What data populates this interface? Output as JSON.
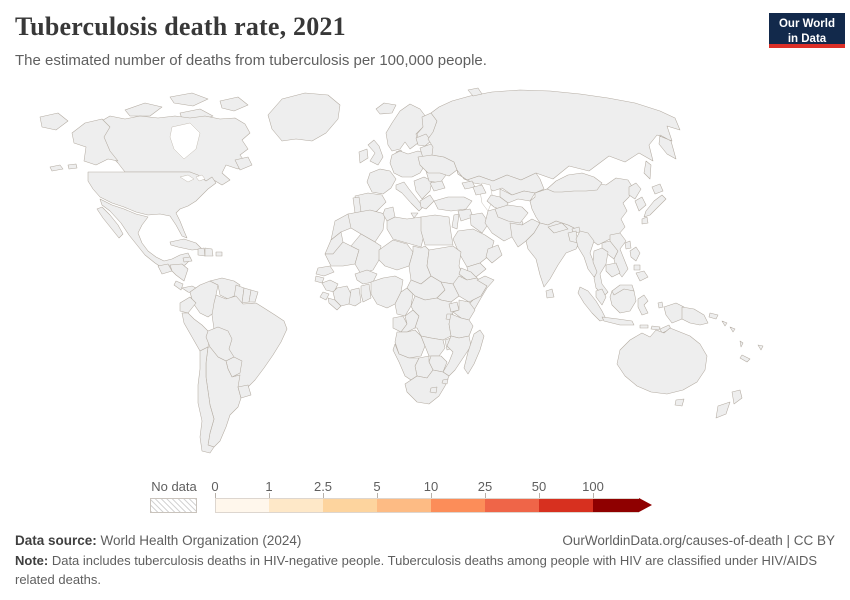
{
  "header": {
    "title": "Tuberculosis death rate, 2021",
    "subtitle": "The estimated number of deaths from tuberculosis per 100,000 people.",
    "logo_line1": "Our World",
    "logo_line2": "in Data"
  },
  "legend": {
    "no_data_label": "No data",
    "tick_labels": [
      "0",
      "1",
      "2.5",
      "5",
      "10",
      "25",
      "50",
      "100"
    ],
    "bins": [
      {
        "range": "0-1",
        "color": "#fff7ec"
      },
      {
        "range": "1-2.5",
        "color": "#fee8c8"
      },
      {
        "range": "2.5-5",
        "color": "#fdd49e"
      },
      {
        "range": "5-10",
        "color": "#fdbb84"
      },
      {
        "range": "10-25",
        "color": "#fc8d59"
      },
      {
        "range": "25-50",
        "color": "#ef6548"
      },
      {
        "range": "50-100",
        "color": "#d7301f"
      },
      {
        "range": "100+",
        "color": "#8f0000"
      }
    ],
    "segment_width": 54,
    "last_segment_width": 46
  },
  "map": {
    "border_color": "#b3aba1",
    "ocean_color": "#ffffff",
    "no_data_pattern": "diagonal-hatch"
  },
  "footer": {
    "source_label": "Data source:",
    "source_text": " World Health Organization (2024)",
    "link_text": "OurWorldinData.org/causes-of-death",
    "license_text": " | CC BY",
    "note_label": "Note:",
    "note_text": " Data includes tuberculosis deaths in HIV-negative people. Tuberculosis deaths among people with HIV are classified under HIV/AIDS related deaths."
  },
  "chart_data": {
    "type": "choropleth",
    "title": "Tuberculosis death rate, 2021",
    "unit": "estimated deaths from tuberculosis per 100,000 people",
    "year": 2021,
    "source": "World Health Organization (2024)",
    "legend_bins": [
      {
        "range": "0-1",
        "color": "#fff7ec"
      },
      {
        "range": "1-2.5",
        "color": "#fee8c8"
      },
      {
        "range": "2.5-5",
        "color": "#fdd49e"
      },
      {
        "range": "5-10",
        "color": "#fdbb84"
      },
      {
        "range": "10-25",
        "color": "#fc8d59"
      },
      {
        "range": "25-50",
        "color": "#ef6548"
      },
      {
        "range": "50-100",
        "color": "#d7301f"
      },
      {
        "range": "100+",
        "color": "#8f0000"
      }
    ],
    "groups": [
      {
        "tier": "t0",
        "range": "0-1",
        "color": "#fff7ec",
        "regions": [
          "canada-arctic",
          "canada",
          "newfoundland",
          "alaska",
          "usa",
          "cuba",
          "puerto-rico",
          "chile",
          "iceland",
          "uk",
          "ireland",
          "scandinavia",
          "finland",
          "denmark",
          "central-europe",
          "france",
          "iberia",
          "italy",
          "greece",
          "turkey",
          "iran",
          "australia",
          "tasmania",
          "nz-north",
          "nz-south",
          "new-caledonia"
        ]
      },
      {
        "tier": "t1",
        "range": "1-2.5",
        "color": "#fee8c8",
        "regions": [
          "mexico",
          "costa-rica",
          "portugal",
          "balkans",
          "belarus",
          "egypt",
          "saudi-arabia",
          "oman",
          "iraq",
          "syria",
          "jordan-israel",
          "kazakhstan",
          "japan",
          "taiwan",
          "argentina",
          "uruguay"
        ]
      },
      {
        "tier": "t2",
        "range": "2.5-5",
        "color": "#fdd49e",
        "regions": [
          "guatemala",
          "colombia",
          "venezuela",
          "suriname",
          "brazil",
          "paraguay",
          "baltics",
          "bulgaria",
          "georgia",
          "china",
          "south-korea",
          "tunisia"
        ]
      },
      {
        "tier": "t3",
        "range": "5-10",
        "color": "#fdbb84",
        "regions": [
          "honduras-nicaragua",
          "panama",
          "jamaica",
          "ecuador",
          "romania",
          "russia",
          "algeria",
          "yemen",
          "sri-lanka",
          "malaysia-peninsula",
          "malaysia-borneo"
        ]
      },
      {
        "tier": "t4",
        "range": "10-25",
        "color": "#fc8d59",
        "regions": [
          "chukotka",
          "dominican-republic",
          "guyana",
          "peru",
          "bolivia",
          "ukraine",
          "morocco",
          "libya",
          "mauritania",
          "sudan",
          "eritrea",
          "uganda",
          "mongolia",
          "uzbekistan",
          "turkmenistan",
          "kyrgyzstan",
          "laos",
          "bhutan",
          "vanuatu",
          "fiji"
        ]
      },
      {
        "tier": "t5",
        "range": "25-50",
        "color": "#ef6548",
        "regions": [
          "haiti",
          "azerbaijan",
          "tajikistan",
          "afghanistan",
          "pakistan",
          "india",
          "mali",
          "niger",
          "burkina-faso",
          "senegal",
          "ivory-coast",
          "ghana",
          "ethiopia",
          "zambia",
          "malawi",
          "zimbabwe",
          "madagascar",
          "thailand",
          "vietnam",
          "cambodia",
          "sumatra",
          "kalimantan",
          "sulawesi",
          "moluccas"
        ]
      },
      {
        "tier": "t6",
        "range": "50-100",
        "color": "#d7301f",
        "regions": [
          "chad",
          "guinea",
          "sierra-leone",
          "liberia",
          "togo-benin",
          "cameroon",
          "south-sudan",
          "congo",
          "drc",
          "kenya",
          "rwanda-burundi",
          "tanzania",
          "angola",
          "mozambique",
          "eswatini",
          "nepal",
          "bangladesh",
          "myanmar",
          "north-korea",
          "philippines",
          "java",
          "lesser-sunda",
          "timor",
          "west-papua",
          "solomon-islands"
        ]
      },
      {
        "tier": "t7",
        "range": "100+",
        "color": "#b30000",
        "regions": [
          "nigeria",
          "somalia",
          "botswana",
          "south-africa",
          "papua-new-guinea",
          "new-britain"
        ]
      },
      {
        "tier": "t8",
        "range": "100+",
        "color": "#8f0000",
        "regions": [
          "guinea-bissau",
          "central-african-republic",
          "gabon",
          "namibia",
          "lesotho"
        ]
      },
      {
        "tier": "no_data",
        "range": "No data",
        "color": "hatch",
        "regions": [
          "greenland",
          "svalbard",
          "western-sahara",
          "french-guiana"
        ]
      }
    ]
  }
}
